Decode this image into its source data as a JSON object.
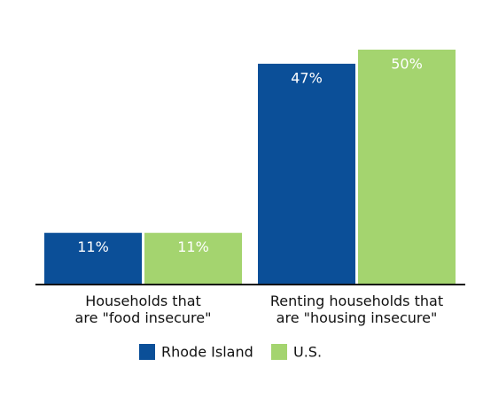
{
  "chart_data": {
    "type": "bar",
    "categories": [
      "Households that\nare \"food insecure\"",
      "Renting households that\nare \"housing insecure\""
    ],
    "series": [
      {
        "name": "Rhode Island",
        "color": "#0b4f98",
        "values": [
          11,
          47
        ],
        "value_labels": [
          "11%",
          "47%"
        ]
      },
      {
        "name": "U.S.",
        "color": "#a4d46f",
        "values": [
          11,
          50
        ],
        "value_labels": [
          "11%",
          "50%"
        ]
      }
    ],
    "legend": "bottom"
  }
}
